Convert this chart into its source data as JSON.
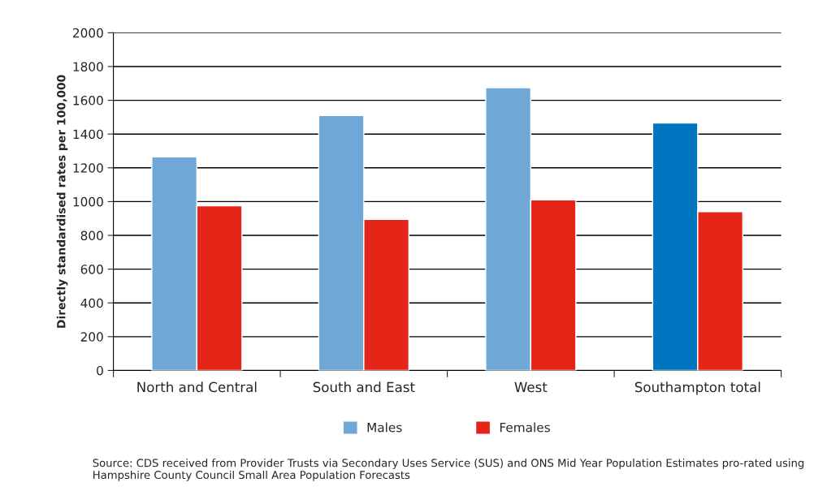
{
  "chart_data": {
    "type": "bar",
    "ylabel": "Directly standardised rates per 100,000",
    "categories": [
      "North and Central",
      "South and East",
      "West",
      "Southampton total"
    ],
    "series": [
      {
        "name": "Males",
        "color": "#6fa8d6",
        "colors": [
          "#6fa8d6",
          "#6fa8d6",
          "#6fa8d6",
          "#0075bf"
        ],
        "values": [
          1265,
          1510,
          1675,
          1465
        ]
      },
      {
        "name": "Females",
        "color": "#e42518",
        "values": [
          975,
          895,
          1010,
          940
        ]
      }
    ],
    "ylim": [
      0,
      2000
    ],
    "yticks": [
      0,
      200,
      400,
      600,
      800,
      1000,
      1200,
      1400,
      1600,
      1800,
      2000
    ],
    "grid": "y",
    "legend": "bottom",
    "annotations": [
      "Source: CDS received from Provider Trusts via Secondary Uses Service (SUS) and ONS Mid Year Population Estimates pro-rated using Hampshire County Council Small Area Population Forecasts"
    ]
  }
}
